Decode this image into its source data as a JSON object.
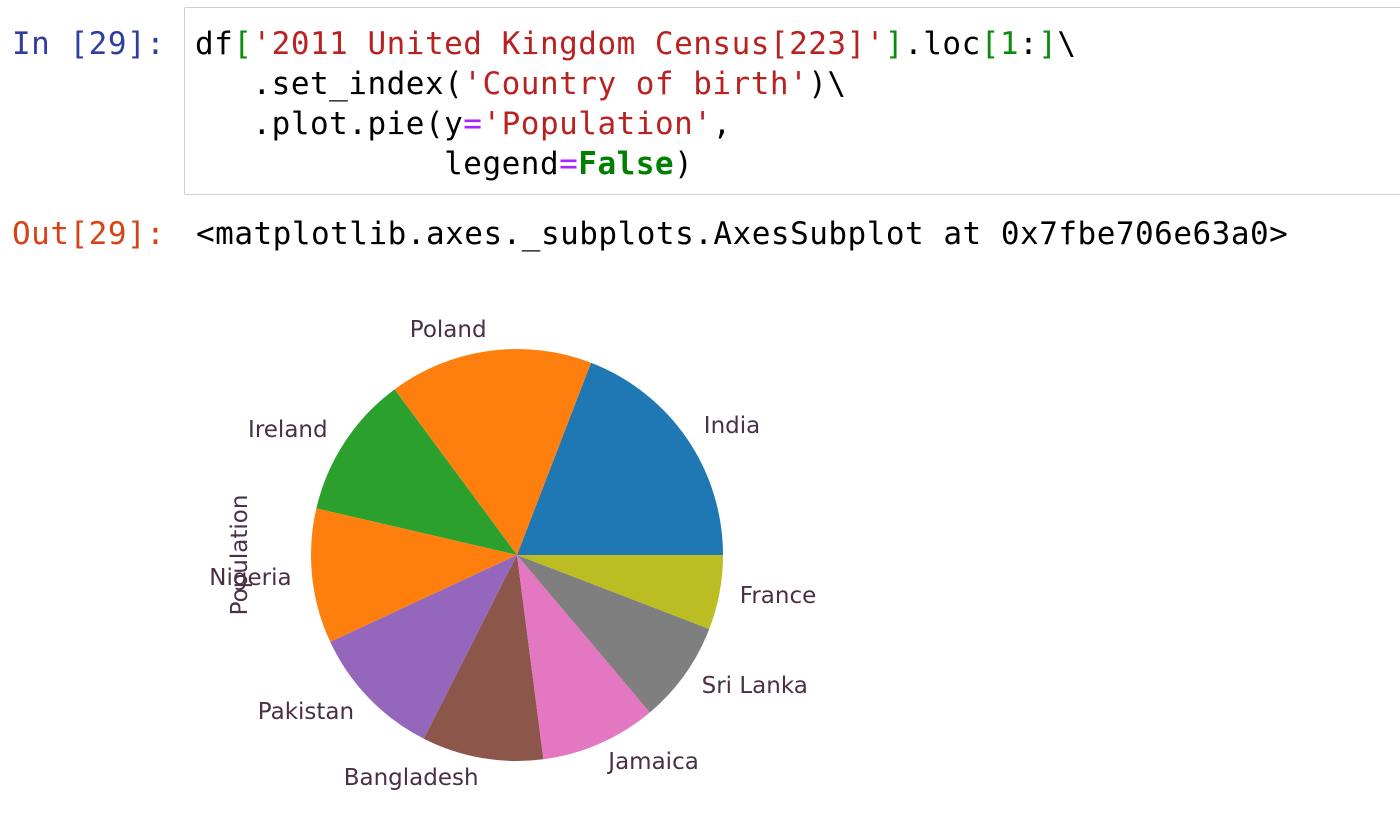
{
  "cell": {
    "in_prompt": "In [29]:",
    "out_prompt": "Out[29]:",
    "code_lines": [
      [
        {
          "t": "df",
          "c": "p"
        },
        {
          "t": "[",
          "c": "b"
        },
        {
          "t": "'2011 United Kingdom Census[223]'",
          "c": "s"
        },
        {
          "t": "]",
          "c": "b"
        },
        {
          "t": ".loc",
          "c": "p"
        },
        {
          "t": "[",
          "c": "b"
        },
        {
          "t": "1",
          "c": "n"
        },
        {
          "t": ":",
          "c": "p"
        },
        {
          "t": "]",
          "c": "b"
        },
        {
          "t": "\\",
          "c": "p"
        }
      ],
      [
        {
          "t": "   .set_index(",
          "c": "p"
        },
        {
          "t": "'Country of birth'",
          "c": "s"
        },
        {
          "t": ")\\",
          "c": "p"
        }
      ],
      [
        {
          "t": "   .plot.pie(y",
          "c": "p"
        },
        {
          "t": "=",
          "c": "o"
        },
        {
          "t": "'Population'",
          "c": "s"
        },
        {
          "t": ",",
          "c": "p"
        }
      ],
      [
        {
          "t": "             legend",
          "c": "p"
        },
        {
          "t": "=",
          "c": "o"
        },
        {
          "t": "False",
          "c": "k"
        },
        {
          "t": ")",
          "c": "p"
        }
      ]
    ],
    "output_text": "<matplotlib.axes._subplots.AxesSubplot at 0x7fbe706e63a0>"
  },
  "chart_data": {
    "type": "pie",
    "ylabel": "Population",
    "legend": false,
    "start_angle": 0,
    "direction": "counterclockwise",
    "slices": [
      {
        "label": "India",
        "value": 694148,
        "color": "#1f77b4"
      },
      {
        "label": "Poland",
        "value": 579121,
        "color": "#ff7f0e"
      },
      {
        "label": "Ireland",
        "value": 407357,
        "color": "#2ca02c"
      },
      {
        "label": "Nigeria",
        "value": 383000,
        "color": "#ff7f0e"
      },
      {
        "label": "Pakistan",
        "value": 384000,
        "color": "#9467bd"
      },
      {
        "label": "Bangladesh",
        "value": 345000,
        "color": "#8c564b"
      },
      {
        "label": "Jamaica",
        "value": 330000,
        "color": "#e377c2"
      },
      {
        "label": "Sri Lanka",
        "value": 290000,
        "color": "#7f7f7f"
      },
      {
        "label": "France",
        "value": 212000,
        "color": "#bcbd22"
      }
    ]
  }
}
